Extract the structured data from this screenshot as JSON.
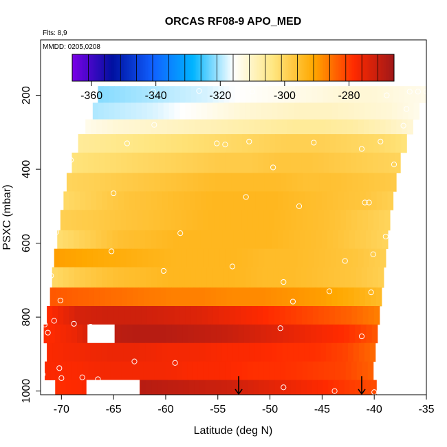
{
  "chart_data": {
    "type": "heatmap",
    "title": "ORCAS RF08-9 APO_MED",
    "flights_note": "Flts: 8,9",
    "date_note": "MMDD: 0205,0208",
    "xlabel": "Latitude (deg N)",
    "ylabel": "PSXC (mbar)",
    "xlim": [
      -72,
      -35
    ],
    "ylim": [
      1010,
      50
    ],
    "xticks": [
      "-70",
      "-65",
      "-60",
      "-55",
      "-50",
      "-45",
      "-40",
      "-35"
    ],
    "yticks": [
      "200",
      "400",
      "600",
      "800",
      "1000"
    ],
    "xtick_values": [
      -70,
      -65,
      -60,
      -55,
      -50,
      -45,
      -40,
      -35
    ],
    "ytick_values": [
      200,
      400,
      600,
      800,
      1000
    ],
    "grid": false,
    "colorbar": {
      "placement": "top",
      "range": [
        -366,
        -266
      ],
      "ticks": [
        "-360",
        "-340",
        "-320",
        "-300",
        "-280"
      ],
      "tick_values": [
        -360,
        -340,
        -320,
        -300,
        -280
      ],
      "colors": [
        "#7a00e6",
        "#0010a0",
        "#1060ff",
        "#00b4ff",
        "#ffffff",
        "#ffe680",
        "#ffa800",
        "#ff2a00",
        "#a01818"
      ]
    },
    "bands": [
      {
        "p_top": 175,
        "p_bot": 220,
        "lat_start": -66.5,
        "lat_end": -35.0,
        "values": [
          -322,
          -321,
          -320,
          -319,
          -318,
          -316,
          -315,
          -314,
          -313,
          -312,
          -312,
          -313,
          -314
        ]
      },
      {
        "p_top": 220,
        "p_bot": 265,
        "lat_start": -67.0,
        "lat_end": -35.7,
        "values": [
          -320,
          -319,
          -318,
          -316,
          -314,
          -312,
          -311,
          -310,
          -310,
          -311,
          -312,
          -314
        ]
      },
      {
        "p_top": 265,
        "p_bot": 305,
        "lat_start": -67.7,
        "lat_end": -36.3,
        "values": [
          -314,
          -312,
          -311,
          -310,
          -309,
          -308,
          -307,
          -306,
          -306,
          -307,
          -309,
          -312
        ]
      },
      {
        "p_top": 305,
        "p_bot": 355,
        "lat_start": -68.4,
        "lat_end": -36.9,
        "values": [
          -306,
          -305,
          -304,
          -303,
          -302,
          -301,
          -300,
          -299,
          -299,
          -300,
          -301,
          -303
        ]
      },
      {
        "p_top": 355,
        "p_bot": 410,
        "lat_start": -69.0,
        "lat_end": -37.5,
        "values": [
          -303,
          -302,
          -301,
          -300,
          -299,
          -298,
          -298,
          -297,
          -297,
          -298,
          -299,
          -300
        ]
      },
      {
        "p_top": 410,
        "p_bot": 460,
        "lat_start": -69.5,
        "lat_end": -37.9,
        "values": [
          -300,
          -299,
          -298,
          -297,
          -296,
          -295,
          -295,
          -295,
          -296,
          -296,
          -297,
          -298
        ]
      },
      {
        "p_top": 460,
        "p_bot": 510,
        "lat_start": -69.8,
        "lat_end": -38.2,
        "values": [
          -301,
          -299,
          -297,
          -296,
          -295,
          -294,
          -294,
          -294,
          -295,
          -296,
          -297,
          -299
        ]
      },
      {
        "p_top": 510,
        "p_bot": 565,
        "lat_start": -70.1,
        "lat_end": -38.5,
        "values": [
          -299,
          -298,
          -297,
          -296,
          -295,
          -294,
          -294,
          -294,
          -295,
          -296,
          -298,
          -300
        ]
      },
      {
        "p_top": 565,
        "p_bot": 615,
        "lat_start": -70.4,
        "lat_end": -38.7,
        "values": [
          -302,
          -299,
          -296,
          -295,
          -294,
          -294,
          -294,
          -294,
          -295,
          -296,
          -298,
          -300
        ]
      },
      {
        "p_top": 615,
        "p_bot": 665,
        "lat_start": -70.7,
        "lat_end": -38.9,
        "values": [
          -290,
          -291,
          -292,
          -293,
          -294,
          -294,
          -294,
          -295,
          -295,
          -296,
          -297,
          -299
        ]
      },
      {
        "p_top": 665,
        "p_bot": 720,
        "lat_start": -70.9,
        "lat_end": -39.1,
        "values": [
          -301,
          -298,
          -296,
          -295,
          -294,
          -294,
          -294,
          -295,
          -295,
          -296,
          -297,
          -299
        ]
      },
      {
        "p_top": 720,
        "p_bot": 770,
        "lat_start": -71.1,
        "lat_end": -39.3,
        "values": [
          -283,
          -284,
          -285,
          -286,
          -287,
          -287,
          -288,
          -288,
          -289,
          -290,
          -292,
          -295
        ]
      },
      {
        "p_top": 770,
        "p_bot": 820,
        "lat_start": -71.4,
        "lat_end": -39.5,
        "values": [
          -279,
          -273,
          -272,
          -272,
          -273,
          -274,
          -276,
          -278,
          -280,
          -282,
          -284,
          -287
        ]
      },
      {
        "p_top": 820,
        "p_bot": 870,
        "lat_start": -71.7,
        "lat_end": -39.7,
        "values": [
          -279,
          -276,
          -270,
          -269,
          -269,
          -270,
          -271,
          -273,
          -275,
          -277,
          -279,
          -283
        ]
      },
      {
        "p_top": 870,
        "p_bot": 920,
        "lat_start": -71.4,
        "lat_end": -39.9,
        "values": [
          -278,
          -277,
          -276,
          -276,
          -277,
          -277,
          -278,
          -278,
          -279,
          -279,
          -281,
          -285
        ]
      },
      {
        "p_top": 920,
        "p_bot": 970,
        "lat_start": -71.6,
        "lat_end": -40.1,
        "values": [
          -278,
          -278,
          -277,
          -277,
          -277,
          -278,
          -278,
          -279,
          -279,
          -280,
          -281,
          -284
        ]
      },
      {
        "p_top": 970,
        "p_bot": 1010,
        "lat_start": -70.6,
        "lat_end": -39.8,
        "values": [
          -279,
          -278,
          -277,
          -269,
          -270,
          -271,
          -272,
          -274,
          -276,
          -278,
          -280,
          -282
        ]
      }
    ],
    "gaps": [
      {
        "p_top": 820,
        "p_bot": 870,
        "lat_start": -67.5,
        "lat_end": -64.9
      },
      {
        "p_top": 970,
        "p_bot": 1010,
        "lat_start": -67.6,
        "lat_end": -62.5
      }
    ],
    "sample_points": [
      {
        "lat": -67.4,
        "p": 190
      },
      {
        "lat": -61.2,
        "p": 190
      },
      {
        "lat": -56.8,
        "p": 188
      },
      {
        "lat": -51.7,
        "p": 190
      },
      {
        "lat": -38.8,
        "p": 200
      },
      {
        "lat": -36.6,
        "p": 190
      },
      {
        "lat": -35.8,
        "p": 190
      },
      {
        "lat": -35.0,
        "p": 190
      },
      {
        "lat": -36.9,
        "p": 237
      },
      {
        "lat": -68.2,
        "p": 280
      },
      {
        "lat": -61.1,
        "p": 280
      },
      {
        "lat": -37.2,
        "p": 282
      },
      {
        "lat": -63.7,
        "p": 330
      },
      {
        "lat": -55.1,
        "p": 330
      },
      {
        "lat": -54.3,
        "p": 333
      },
      {
        "lat": -52.0,
        "p": 325
      },
      {
        "lat": -45.8,
        "p": 328
      },
      {
        "lat": -39.4,
        "p": 325
      },
      {
        "lat": -41.2,
        "p": 345
      },
      {
        "lat": -69.1,
        "p": 375
      },
      {
        "lat": -38.1,
        "p": 387
      },
      {
        "lat": -49.7,
        "p": 395
      },
      {
        "lat": -65.0,
        "p": 465
      },
      {
        "lat": -70.3,
        "p": 470
      },
      {
        "lat": -52.3,
        "p": 475
      },
      {
        "lat": -40.9,
        "p": 490
      },
      {
        "lat": -40.5,
        "p": 490
      },
      {
        "lat": -47.2,
        "p": 500
      },
      {
        "lat": -70.5,
        "p": 570
      },
      {
        "lat": -58.6,
        "p": 573
      },
      {
        "lat": -38.9,
        "p": 582
      },
      {
        "lat": -70.9,
        "p": 603
      },
      {
        "lat": -65.2,
        "p": 622
      },
      {
        "lat": -40.1,
        "p": 630
      },
      {
        "lat": -42.8,
        "p": 648
      },
      {
        "lat": -53.6,
        "p": 663
      },
      {
        "lat": -60.2,
        "p": 675
      },
      {
        "lat": -71.0,
        "p": 688
      },
      {
        "lat": -48.7,
        "p": 705
      },
      {
        "lat": -44.3,
        "p": 730
      },
      {
        "lat": -40.3,
        "p": 733
      },
      {
        "lat": -70.1,
        "p": 755
      },
      {
        "lat": -47.8,
        "p": 758
      },
      {
        "lat": -71.6,
        "p": 820
      },
      {
        "lat": -70.7,
        "p": 810
      },
      {
        "lat": -68.8,
        "p": 818
      },
      {
        "lat": -67.2,
        "p": 826
      },
      {
        "lat": -49.0,
        "p": 830
      },
      {
        "lat": -71.3,
        "p": 842
      },
      {
        "lat": -41.2,
        "p": 852
      },
      {
        "lat": -63.0,
        "p": 920
      },
      {
        "lat": -59.1,
        "p": 924
      },
      {
        "lat": -70.2,
        "p": 938
      },
      {
        "lat": -71.8,
        "p": 955
      },
      {
        "lat": -70.0,
        "p": 965
      },
      {
        "lat": -68.0,
        "p": 963
      },
      {
        "lat": -66.5,
        "p": 968
      },
      {
        "lat": -48.7,
        "p": 990
      },
      {
        "lat": -43.8,
        "p": 1000
      },
      {
        "lat": -40.0,
        "p": 1003
      }
    ],
    "arrows": [
      {
        "lat": -53.0,
        "p_top": 960,
        "p_bot": 1008
      },
      {
        "lat": -41.2,
        "p_top": 960,
        "p_bot": 1008
      }
    ]
  }
}
